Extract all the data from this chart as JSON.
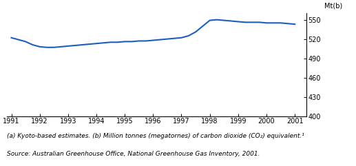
{
  "ylabel": "Mt(b)",
  "line_color": "#1a5fbd",
  "line_width": 1.5,
  "background_color": "#ffffff",
  "ylim": [
    400,
    560
  ],
  "yticks": [
    400,
    430,
    460,
    490,
    520,
    550
  ],
  "xlim_min": 1990.85,
  "xlim_max": 2001.4,
  "xticks": [
    1991,
    1992,
    1993,
    1994,
    1995,
    1996,
    1997,
    1998,
    1999,
    2000,
    2001
  ],
  "x": [
    1991.0,
    1991.25,
    1991.5,
    1991.75,
    1992.0,
    1992.25,
    1992.5,
    1992.75,
    1993.0,
    1993.25,
    1993.5,
    1993.75,
    1994.0,
    1994.25,
    1994.5,
    1994.75,
    1995.0,
    1995.25,
    1995.5,
    1995.75,
    1996.0,
    1996.25,
    1996.5,
    1996.75,
    1997.0,
    1997.25,
    1997.5,
    1997.75,
    1998.0,
    1998.25,
    1998.5,
    1998.75,
    1999.0,
    1999.25,
    1999.5,
    1999.75,
    2000.0,
    2000.25,
    2000.5,
    2000.75,
    2001.0
  ],
  "y": [
    522,
    519,
    516,
    511,
    508,
    507,
    507,
    508,
    509,
    510,
    511,
    512,
    513,
    514,
    515,
    515,
    516,
    516,
    517,
    517,
    518,
    519,
    520,
    521,
    522,
    525,
    531,
    540,
    549,
    550,
    549,
    548,
    547,
    546,
    546,
    546,
    545,
    545,
    545,
    544,
    543
  ],
  "footnote1": "(a) Kyoto-based estimates. (b) Million tonnes (megatornes) of carbon dioxide (CO₂) equivalent.¹",
  "footnote2": "Source: Australian Greenhouse Office, National Greenhouse Gas Inventory, 2001.",
  "tick_fontsize": 7,
  "footnote_fontsize": 6.5
}
